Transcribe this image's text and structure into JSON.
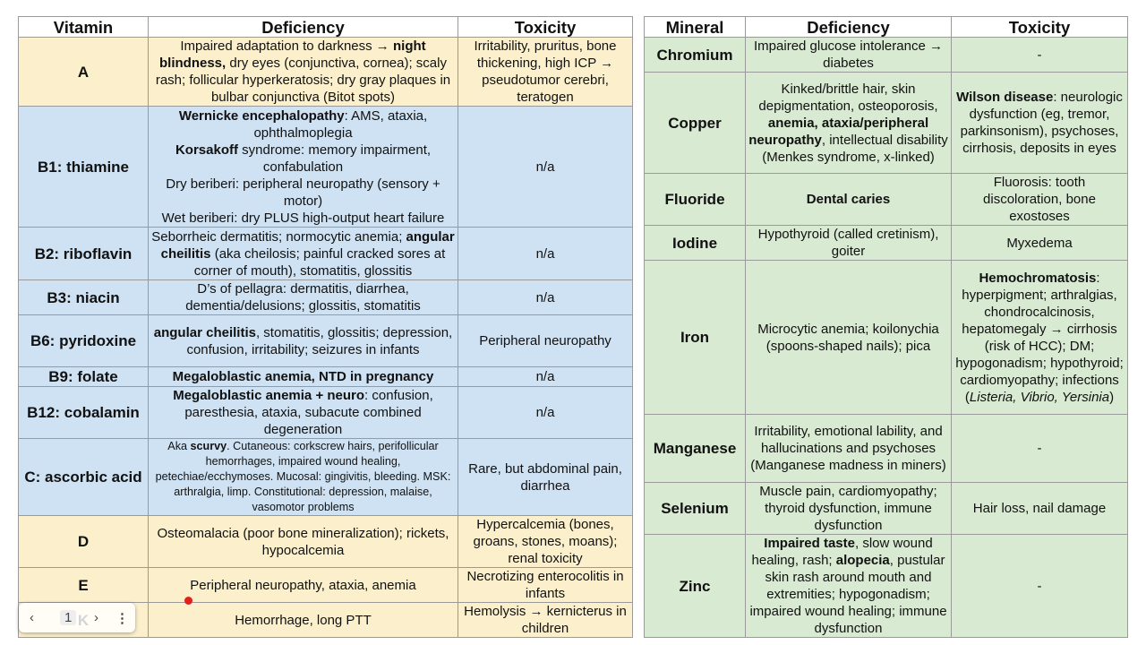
{
  "vitamin_table": {
    "headers": [
      "Vitamin",
      "Deficiency",
      "Toxicity"
    ],
    "rows": [
      {
        "name": "A",
        "color": "#fcf0cc",
        "deficiency": [
          [
            "Impaired adaptation to darkness → ",
            {
              "text": "night blindness,",
              "style": "bold"
            },
            " dry eyes (conjunctiva, cornea); scaly rash; follicular hyperkeratosis; dry gray plaques in bulbar conjunctiva (Bitot spots)"
          ]
        ],
        "toxicity": [
          [
            "Irritability, pruritus, bone thickening, high ICP → pseudotumor cerebri, teratogen"
          ]
        ]
      },
      {
        "name": "B1: thiamine",
        "color": "#cfe2f3",
        "deficiency": [
          [
            {
              "text": "Wernicke encephalopathy",
              "style": "bold"
            },
            ": AMS, ataxia, ophthalmoplegia"
          ],
          [
            {
              "text": "Korsakoff",
              "style": "bold"
            },
            " syndrome: memory impairment, confabulation"
          ],
          [
            "Dry beriberi: peripheral neuropathy (sensory + motor)"
          ],
          [
            "Wet beriberi: dry PLUS high-output heart failure"
          ]
        ],
        "toxicity": [
          [
            "n/a"
          ]
        ]
      },
      {
        "name": "B2: riboflavin",
        "color": "#cfe2f3",
        "deficiency": [
          [
            "Seborrheic dermatitis; normocytic anemia; ",
            {
              "text": "angular cheilitis",
              "style": "bold"
            },
            " (aka cheilosis; painful cracked sores at corner of mouth), stomatitis, glossitis"
          ]
        ],
        "toxicity": [
          [
            "n/a"
          ]
        ]
      },
      {
        "name": "B3: niacin",
        "color": "#cfe2f3",
        "deficiency": [
          [
            "D’s of pellagra: dermatitis, diarrhea, dementia/delusions; glossitis, stomatitis"
          ]
        ],
        "toxicity": [
          [
            "n/a"
          ]
        ]
      },
      {
        "name": "B6: pyridoxine",
        "color": "#cfe2f3",
        "deficiency": [
          [
            {
              "text": "angular cheilitis",
              "style": "bold"
            },
            ", stomatitis, glossitis; depression, confusion, irritability; seizures in infants"
          ]
        ],
        "toxicity": [
          [
            "Peripheral neuropathy"
          ]
        ]
      },
      {
        "name": "B9: folate",
        "color": "#cfe2f3",
        "deficiency": [
          [
            {
              "text": "Megaloblastic anemia, NTD in pregnancy",
              "style": "bold"
            }
          ]
        ],
        "toxicity": [
          [
            "n/a"
          ]
        ]
      },
      {
        "name": "B12: cobalamin",
        "color": "#cfe2f3",
        "deficiency": [
          [
            {
              "text": "Megaloblastic anemia + neuro",
              "style": "bold"
            },
            ": confusion, paresthesia, ataxia, subacute combined degeneration"
          ]
        ],
        "toxicity": [
          [
            "n/a"
          ]
        ]
      },
      {
        "name": "C: ascorbic acid",
        "color": "#cfe2f3",
        "deficiency": [
          [
            "Aka ",
            {
              "text": "scurvy",
              "style": "bold"
            },
            ".  Cutaneous: corkscrew hairs, perifollicular hemorrhages, impaired wound healing, petechiae/ecchymoses.  Mucosal: gingivitis, bleeding.  MSK: arthralgia, limp.  Constitutional: depression, malaise, vasomotor problems"
          ]
        ],
        "toxicity": [
          [
            "Rare, but abdominal pain, diarrhea"
          ]
        ]
      },
      {
        "name": "D",
        "color": "#fcf0cc",
        "deficiency": [
          [
            "Osteomalacia (poor bone mineralization); rickets, hypocalcemia"
          ]
        ],
        "toxicity": [
          [
            "Hypercalcemia (bones, groans, stones, moans); renal toxicity"
          ]
        ]
      },
      {
        "name": "E",
        "color": "#fcf0cc",
        "deficiency": [
          [
            "Peripheral neuropathy, ataxia, anemia"
          ]
        ],
        "toxicity": [
          [
            "Necrotizing enterocolitis in infants"
          ]
        ]
      },
      {
        "name": "K",
        "color": "#fcf0cc",
        "deficiency": [
          [
            "Hemorrhage, long PTT"
          ]
        ],
        "toxicity": [
          [
            "Hemolysis → kernicterus in children"
          ]
        ]
      }
    ]
  },
  "mineral_table": {
    "headers": [
      "Mineral",
      "Deficiency",
      "Toxicity"
    ],
    "rows": [
      {
        "name": "Chromium",
        "color": "#d9ead3",
        "deficiency": [
          [
            "Impaired glucose intolerance → diabetes"
          ]
        ],
        "toxicity": [
          [
            "-"
          ]
        ]
      },
      {
        "name": "Copper",
        "color": "#d9ead3",
        "deficiency": [
          [
            "Kinked/brittle hair, skin depigmentation, osteoporosis, ",
            {
              "text": "anemia, ataxia/peripheral neuropathy",
              "style": "bold"
            },
            ", intellectual disability (Menkes syndrome, x-linked)"
          ]
        ],
        "toxicity": [
          [
            {
              "text": "Wilson disease",
              "style": "bold"
            },
            ": neurologic dysfunction (eg, tremor, parkinsonism), psychoses, cirrhosis, deposits in eyes"
          ]
        ]
      },
      {
        "name": "Fluoride",
        "color": "#d9ead3",
        "deficiency": [
          [
            {
              "text": "Dental caries",
              "style": "bold"
            }
          ]
        ],
        "toxicity": [
          [
            "Fluorosis: tooth discoloration, bone exostoses"
          ]
        ]
      },
      {
        "name": "Iodine",
        "color": "#d9ead3",
        "deficiency": [
          [
            "Hypothyroid (called cretinism), goiter"
          ]
        ],
        "toxicity": [
          [
            "Myxedema"
          ]
        ]
      },
      {
        "name": "Iron",
        "color": "#d9ead3",
        "deficiency": [
          [
            "Microcytic anemia; koilonychia (spoons-shaped nails); pica"
          ]
        ],
        "toxicity": [
          [
            {
              "text": "Hemochromatosis",
              "style": "bold"
            },
            ": hyperpigment; arthralgias, chondrocalcinosis, hepatomegaly → cirrhosis (risk of HCC); DM; hypogonadism; hypothyroid; cardiomyopathy; infections (",
            {
              "text": "Listeria, Vibrio, Yersinia",
              "style": "italic"
            },
            ")"
          ]
        ]
      },
      {
        "name": "Manganese",
        "color": "#d9ead3",
        "deficiency": [
          [
            "Irritability, emotional lability, and hallucinations and psychoses (Manganese madness in miners)"
          ]
        ],
        "toxicity": [
          [
            "-"
          ]
        ]
      },
      {
        "name": "Selenium",
        "color": "#d9ead3",
        "deficiency": [
          [
            "Muscle pain, cardiomyopathy; thyroid dysfunction, immune dysfunction"
          ]
        ],
        "toxicity": [
          [
            "Hair loss, nail damage"
          ]
        ]
      },
      {
        "name": "Zinc",
        "color": "#d9ead3",
        "deficiency": [
          [
            {
              "text": "Impaired taste",
              "style": "bold"
            },
            ", slow wound healing, rash; ",
            {
              "text": "alopecia",
              "style": "bold"
            },
            ", pustular skin rash around mouth and extremities; hypogonadism; impaired wound healing; immune dysfunction"
          ]
        ],
        "toxicity": [
          [
            "-"
          ]
        ]
      }
    ]
  },
  "toolbar": {
    "page": "1"
  }
}
